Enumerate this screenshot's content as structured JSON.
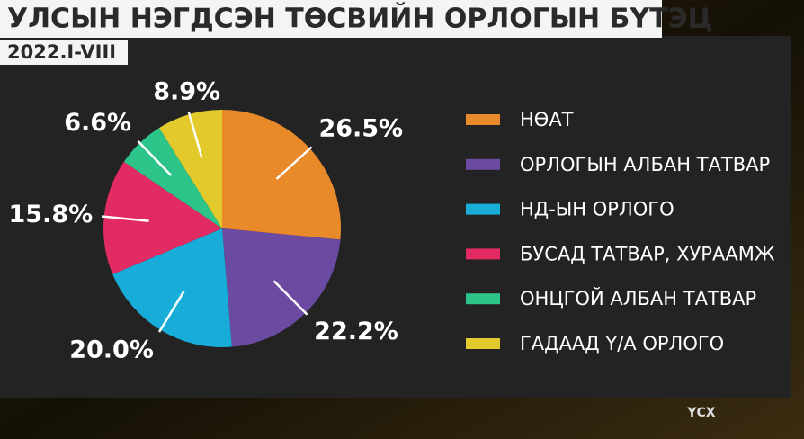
{
  "title": "УЛСЫН НЭГДСЭН ТӨСВИЙН ОРЛОГЫН БҮТЭЦ",
  "subtitle": "2022.I-VIII",
  "source": "ҮСХ",
  "chart_data": {
    "type": "pie",
    "categories": [
      "НӨАТ",
      "ОРЛОГЫН АЛБАН ТАТВАР",
      "НД-ЫН ОРЛОГО",
      "БУСАД ТАТВАР, ХУРААМЖ",
      "ОНЦГОЙ АЛБАН ТАТВАР",
      "ГАДААД Ү/А ОРЛОГО"
    ],
    "values": [
      26.5,
      22.2,
      20.0,
      15.8,
      6.6,
      8.9
    ],
    "value_labels": [
      "26.5%",
      "22.2%",
      "20.0%",
      "15.8%",
      "6.6%",
      "8.9%"
    ],
    "colors": [
      "#e8892a",
      "#6b4ba1",
      "#17add8",
      "#e22a63",
      "#2dc48a",
      "#e2c92c"
    ],
    "legend": "right"
  }
}
